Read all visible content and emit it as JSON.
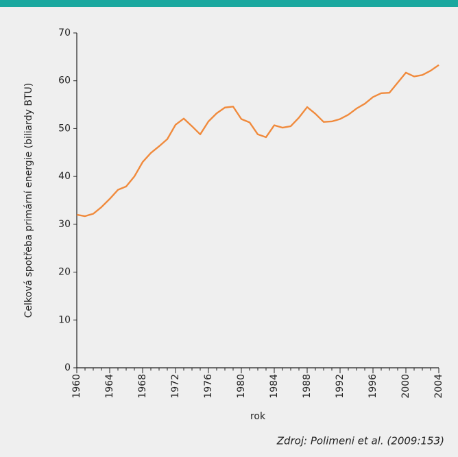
{
  "chart_data": {
    "type": "line",
    "x": [
      1960,
      1961,
      1962,
      1963,
      1964,
      1965,
      1966,
      1967,
      1968,
      1969,
      1970,
      1971,
      1972,
      1973,
      1974,
      1975,
      1976,
      1977,
      1978,
      1979,
      1980,
      1981,
      1982,
      1983,
      1984,
      1985,
      1986,
      1987,
      1988,
      1989,
      1990,
      1991,
      1992,
      1993,
      1994,
      1995,
      1996,
      1997,
      1998,
      1999,
      2000,
      2001,
      2002,
      2003,
      2004
    ],
    "series": [
      {
        "name": "Celková spotřeba primární energie",
        "color": "#f08a3c",
        "values": [
          32.0,
          31.7,
          32.2,
          33.6,
          35.3,
          37.2,
          37.9,
          40.0,
          43.0,
          44.9,
          46.3,
          47.8,
          50.8,
          52.1,
          50.5,
          48.8,
          51.5,
          53.2,
          54.4,
          54.6,
          52.0,
          51.3,
          48.8,
          48.2,
          50.7,
          50.2,
          50.5,
          52.3,
          54.5,
          53.1,
          51.4,
          51.5,
          52.0,
          52.9,
          54.2,
          55.2,
          56.6,
          57.4,
          57.5,
          59.6,
          61.7,
          60.9,
          61.2,
          62.1,
          63.3
        ]
      }
    ],
    "xlabel": "rok",
    "ylabel": "Celková spotřeba primární energie (biliardy BTU)",
    "xlim": [
      1960,
      2004
    ],
    "xticks": [
      1960,
      1964,
      1968,
      1972,
      1976,
      1980,
      1984,
      1988,
      1992,
      1996,
      2000,
      2004
    ],
    "ylim": [
      0,
      70
    ],
    "yticks": [
      0,
      10,
      20,
      30,
      40,
      50,
      60,
      70
    ],
    "source": "Zdroj: Polimeni et al. (2009:153)"
  }
}
